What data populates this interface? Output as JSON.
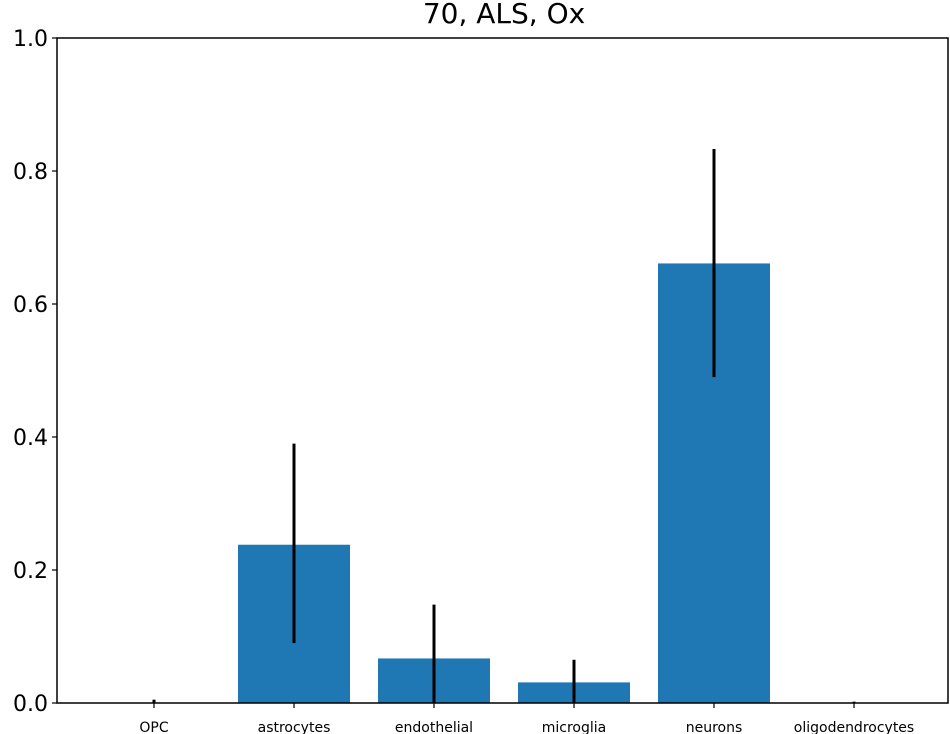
{
  "chart_data": {
    "type": "bar",
    "title": "70, ALS, Ox",
    "xlabel": "",
    "ylabel": "",
    "categories": [
      "OPC",
      "astrocytes",
      "endothelial",
      "microglia",
      "neurons",
      "oligodendrocytes"
    ],
    "values": [
      0.0,
      0.238,
      0.067,
      0.031,
      0.661,
      0.0
    ],
    "error_low": [
      0.0,
      0.09,
      0.0,
      0.0,
      0.49,
      0.0
    ],
    "error_high": [
      0.005,
      0.39,
      0.148,
      0.065,
      0.833,
      0.002
    ],
    "ylim": [
      0,
      1.0
    ],
    "yticks": [
      "0.0",
      "0.2",
      "0.4",
      "0.6",
      "0.8",
      "1.0"
    ],
    "grid": false,
    "bar_color": "#1f77b4",
    "error_color": "#000000"
  }
}
